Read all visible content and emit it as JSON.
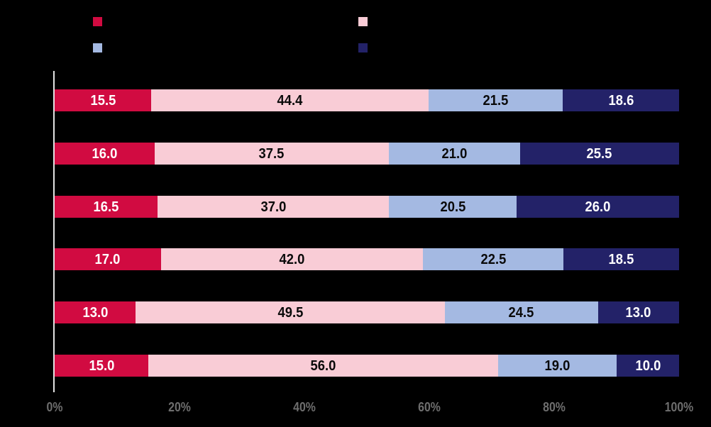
{
  "background_color": "#000000",
  "axis_line_color": "#e3e3e3",
  "tick_label_color": "#6e6e6e",
  "legend": {
    "items": [
      {
        "name": "crimson",
        "color": "#d10b41",
        "label": ""
      },
      {
        "name": "pink",
        "color": "#f9ccd6",
        "label": ""
      },
      {
        "name": "light-blue",
        "color": "#a4b9e2",
        "label": ""
      },
      {
        "name": "navy",
        "color": "#232268",
        "label": ""
      }
    ]
  },
  "chart_data": {
    "type": "bar",
    "orientation": "horizontal",
    "stacked": true,
    "title": "",
    "xlabel": "",
    "ylabel": "",
    "grid": false,
    "legend_position": "top",
    "categories": [
      "",
      "",
      "",
      "",
      "",
      ""
    ],
    "series": [
      {
        "name": "crimson",
        "color": "#d10b41",
        "text_color": "#ffffff",
        "values": [
          15.5,
          16.0,
          16.5,
          17.0,
          13.0,
          15.0
        ]
      },
      {
        "name": "pink",
        "color": "#f9ccd6",
        "text_color": "#0a0a0a",
        "values": [
          44.4,
          37.5,
          37.0,
          42.0,
          49.5,
          56.0
        ]
      },
      {
        "name": "light-blue",
        "color": "#a4b9e2",
        "text_color": "#0a0a0a",
        "values": [
          21.5,
          21.0,
          20.5,
          22.5,
          24.5,
          19.0
        ]
      },
      {
        "name": "navy",
        "color": "#232268",
        "text_color": "#ffffff",
        "values": [
          18.6,
          25.5,
          26.0,
          18.5,
          13.0,
          10.0
        ]
      }
    ],
    "x_axis": {
      "ticks": [
        "0%",
        "20%",
        "40%",
        "60%",
        "80%",
        "100%"
      ],
      "range": [
        0,
        100
      ]
    },
    "value_labels": "one_decimal"
  }
}
